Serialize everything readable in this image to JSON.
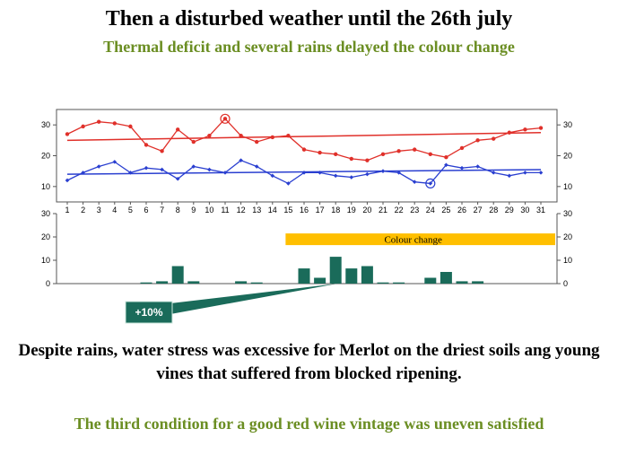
{
  "slide": {
    "title": "Then a disturbed weather until the 26th july",
    "subtitle": "Thermal deficit and several rains delayed the colour change",
    "body": "Despite rains, water stress was excessive for Merlot on the driest soils ang young vines that suffered from blocked ripening.",
    "conclusion": "The third condition for a good red wine vintage was uneven satisfied"
  },
  "colors": {
    "max_series": "#e0302a",
    "min_series": "#2a3fd0",
    "rain_bars": "#1a6b5a",
    "colour_change_band": "#ffbf00",
    "callout": "#1a6b5a",
    "subtitle_green": "#6b8e23"
  },
  "chart_data": [
    {
      "type": "line",
      "x": [
        1,
        2,
        3,
        4,
        5,
        6,
        7,
        8,
        9,
        10,
        11,
        12,
        13,
        14,
        15,
        16,
        17,
        18,
        19,
        20,
        21,
        22,
        23,
        24,
        25,
        26,
        27,
        28,
        29,
        30,
        31
      ],
      "x_tick_labels": [
        "1",
        "2",
        "3",
        "4",
        "5",
        "6",
        "7",
        "8",
        "9",
        "10",
        "11",
        "12",
        "13",
        "14",
        "15",
        "16",
        "17",
        "18",
        "19",
        "20",
        "21",
        "22",
        "23",
        "24",
        "25",
        "26",
        "27",
        "28",
        "29",
        "30",
        "31"
      ],
      "ylim": [
        5,
        35
      ],
      "y_ticks": [
        10,
        20,
        30
      ],
      "series": [
        {
          "key": "max",
          "values": [
            27,
            29.5,
            31,
            30.5,
            29.5,
            23.5,
            21.5,
            28.5,
            24.5,
            26.5,
            32,
            26.5,
            24.5,
            26,
            26.5,
            22,
            21,
            20.5,
            19,
            18.5,
            20.5,
            21.5,
            22,
            20.5,
            19.5,
            22.5,
            25,
            25.5,
            27.5,
            28.5,
            29
          ],
          "trend": [
            25,
            27.5
          ],
          "circled_points": [
            11
          ]
        },
        {
          "key": "min",
          "values": [
            12,
            14.5,
            16.5,
            18,
            14.5,
            16,
            15.5,
            12.5,
            16.5,
            15.5,
            14.5,
            18.5,
            16.5,
            13.5,
            11,
            14.5,
            14.5,
            13.5,
            13,
            14,
            15,
            14.5,
            11.5,
            11,
            17,
            16,
            16.5,
            14.5,
            13.5,
            14.5,
            14.5
          ],
          "trend": [
            14,
            15.5
          ],
          "circled_points": [
            24
          ]
        }
      ],
      "grid": false
    },
    {
      "type": "bar",
      "categories": [
        "1",
        "2",
        "3",
        "4",
        "5",
        "6",
        "7",
        "8",
        "9",
        "10",
        "11",
        "12",
        "13",
        "14",
        "15",
        "16",
        "17",
        "18",
        "19",
        "20",
        "21",
        "22",
        "23",
        "24",
        "25",
        "26",
        "27",
        "28",
        "29",
        "30",
        "31"
      ],
      "values": [
        0,
        0,
        0,
        0,
        0,
        0.5,
        1,
        7.5,
        1,
        0,
        0,
        1,
        0.5,
        0,
        0,
        6.5,
        2.5,
        11.5,
        6.5,
        7.5,
        0.5,
        0.5,
        0,
        2.5,
        5,
        1,
        1,
        0,
        0,
        0,
        0
      ],
      "ylim": [
        0,
        30
      ],
      "y_ticks": [
        0,
        10,
        20,
        30
      ],
      "band": {
        "label": "Colour change",
        "from_day": 15,
        "to_day": 31
      },
      "callout": {
        "label": "+10%",
        "points_to_day": 18
      },
      "grid": false
    }
  ]
}
